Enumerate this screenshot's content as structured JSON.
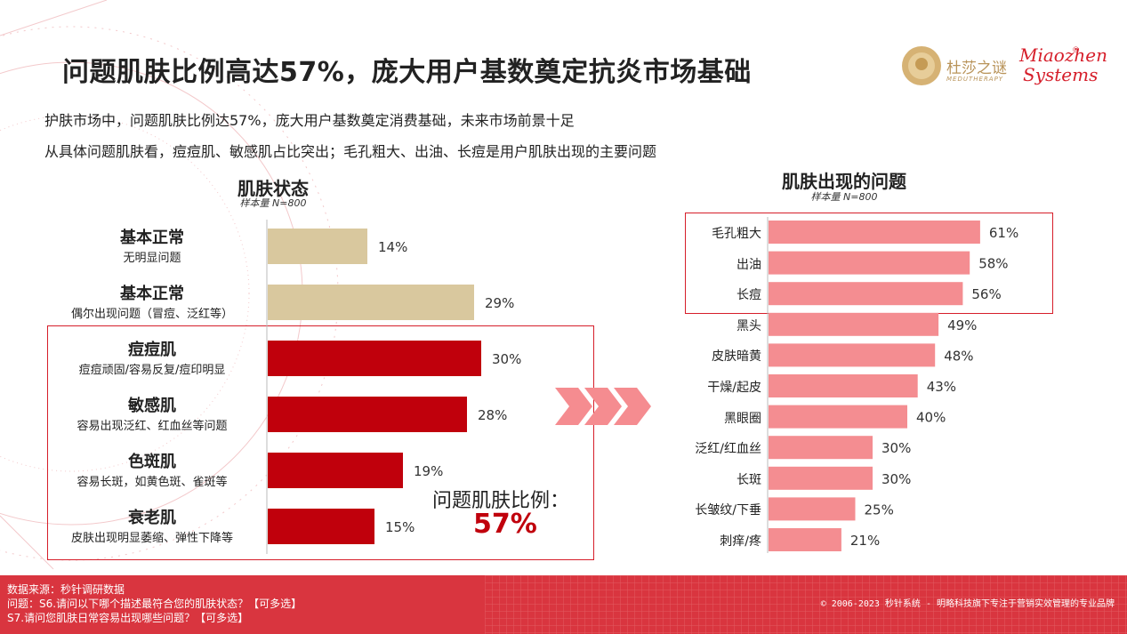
{
  "title": "问题肌肤比例高达57%，庞大用户基数奠定抗炎市场基础",
  "bullets": [
    "护肤市场中，问题肌肤比例达57%，庞大用户基数奠定消费基础，未来市场前景十足",
    "从具体问题肌肤看，痘痘肌、敏感肌占比突出；毛孔粗大、出油、长痘是用户肌肤出现的主要问题"
  ],
  "logo": {
    "brand_cn": "杜莎之谜",
    "brand_en": "MEDUTHERAPY",
    "partner_line1": "Miaozhen",
    "partner_line2": "Systems",
    "partner_reg": "®"
  },
  "highlight": {
    "label": "问题肌肤比例：",
    "value": "57%"
  },
  "colors": {
    "tan": "#d9c89e",
    "red": "#c0000c",
    "pink": "#f48d91",
    "frame": "#d61e2a",
    "footer": "#d9353f"
  },
  "chart_data": [
    {
      "type": "bar",
      "orientation": "horizontal",
      "title": "肌肤状态",
      "subtitle": "样本量 N=800",
      "categories": [
        {
          "name": "基本正常",
          "desc": "无明显问题"
        },
        {
          "name": "基本正常",
          "desc": "偶尔出现问题（冒痘、泛红等）"
        },
        {
          "name": "痘痘肌",
          "desc": "痘痘顽固/容易反复/痘印明显"
        },
        {
          "name": "敏感肌",
          "desc": "容易出现泛红、红血丝等问题"
        },
        {
          "name": "色斑肌",
          "desc": "容易长斑，如黄色斑、雀斑等"
        },
        {
          "name": "衰老肌",
          "desc": "皮肤出现明显萎缩、弹性下降等"
        }
      ],
      "values": [
        14,
        29,
        30,
        28,
        19,
        15
      ],
      "value_labels": [
        "14%",
        "29%",
        "30%",
        "28%",
        "19%",
        "15%"
      ],
      "bar_colors": [
        "tan",
        "tan",
        "red",
        "red",
        "red",
        "red"
      ],
      "unit": "%"
    },
    {
      "type": "bar",
      "orientation": "horizontal",
      "title": "肌肤出现的问题",
      "subtitle": "样本量 N=800",
      "categories": [
        "毛孔粗大",
        "出油",
        "长痘",
        "黑头",
        "皮肤暗黄",
        "干燥/起皮",
        "黑眼圈",
        "泛红/红血丝",
        "长斑",
        "长皱纹/下垂",
        "刺痒/疼"
      ],
      "values": [
        61,
        58,
        56,
        49,
        48,
        43,
        40,
        30,
        30,
        25,
        21
      ],
      "value_labels": [
        "61%",
        "58%",
        "56%",
        "49%",
        "48%",
        "43%",
        "40%",
        "30%",
        "30%",
        "25%",
        "21%"
      ],
      "unit": "%"
    }
  ],
  "footer": {
    "source": "数据来源：秒针调研数据",
    "q1": "问题：S6.请问以下哪个描述最符合您的肌肤状态？【可多选】",
    "q2": "S7.请问您肌肤日常容易出现哪些问题？【可多选】",
    "copyright": "© 2006-2023 秒针系统 - 明略科技旗下专注于营销实效管理的专业品牌"
  }
}
